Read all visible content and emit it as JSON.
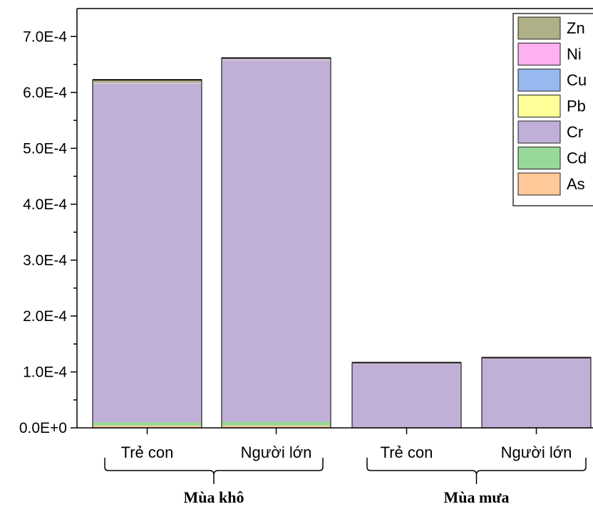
{
  "chart_data": {
    "type": "bar",
    "stacked": true,
    "categories": [
      "Trẻ con",
      "Người lớn",
      "Trẻ con",
      "Người lớn"
    ],
    "groups": [
      {
        "label": "Mùa khô",
        "categories": [
          "Trẻ con",
          "Người lớn"
        ]
      },
      {
        "label": "Mùa mưa",
        "categories": [
          "Trẻ con",
          "Người lớn"
        ]
      }
    ],
    "ylim": [
      0,
      0.00075
    ],
    "yticks": [
      {
        "value": 0,
        "label": "0.0E+0"
      },
      {
        "value": 0.0001,
        "label": "1.0E-4"
      },
      {
        "value": 0.0002,
        "label": "2.0E-4"
      },
      {
        "value": 0.0003,
        "label": "3.0E-4"
      },
      {
        "value": 0.0004,
        "label": "4.0E-4"
      },
      {
        "value": 0.0005,
        "label": "5.0E-4"
      },
      {
        "value": 0.0006,
        "label": "6.0E-4"
      },
      {
        "value": 0.0007,
        "label": "7.0E-4"
      }
    ],
    "series": [
      {
        "name": "As",
        "color": "#ffc898",
        "values": [
          4e-06,
          4e-06,
          5e-07,
          5e-07
        ]
      },
      {
        "name": "Cd",
        "color": "#98d898",
        "values": [
          6e-06,
          7e-06,
          5e-07,
          5e-07
        ]
      },
      {
        "name": "Cr",
        "color": "#c0b0d8",
        "values": [
          0.000606,
          0.000647,
          0.000114,
          0.000123
        ]
      },
      {
        "name": "Pb",
        "color": "#ffff98",
        "values": [
          5e-07,
          5e-07,
          2e-07,
          2e-07
        ]
      },
      {
        "name": "Cu",
        "color": "#98b8f0",
        "values": [
          5e-07,
          5e-07,
          2e-07,
          2e-07
        ]
      },
      {
        "name": "Ni",
        "color": "#ffb0f0",
        "values": [
          5e-07,
          5e-07,
          2e-07,
          2e-07
        ]
      },
      {
        "name": "Zn",
        "color": "#b0b088",
        "values": [
          5e-06,
          2e-06,
          1e-06,
          1e-06
        ]
      }
    ],
    "legend_order": [
      "Zn",
      "Ni",
      "Cu",
      "Pb",
      "Cr",
      "Cd",
      "As"
    ],
    "legend_position": "top-right",
    "grid": false
  }
}
